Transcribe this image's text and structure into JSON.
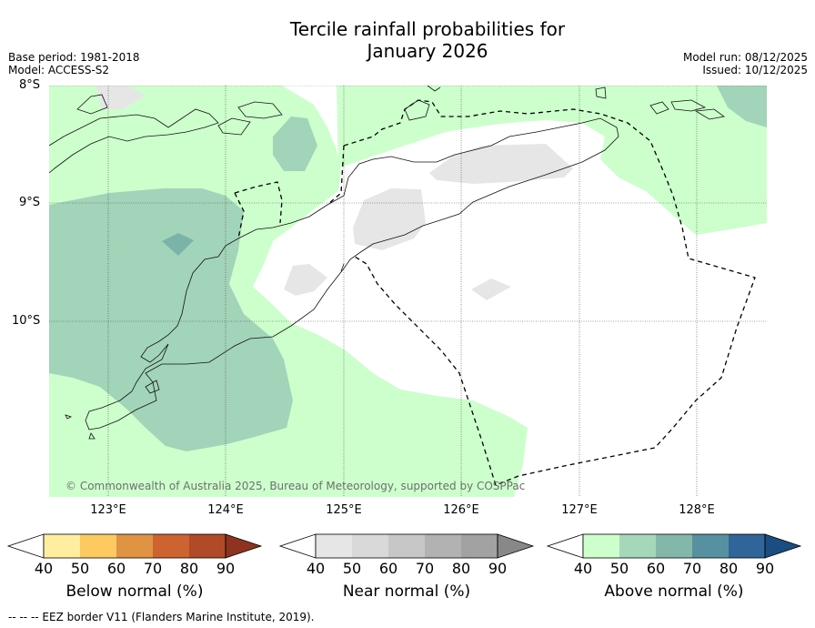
{
  "title": {
    "line1": "Tercile rainfall probabilities for",
    "line2": "January 2026"
  },
  "meta": {
    "base_period": "Base period: 1981-2018",
    "model": "Model: ACCESS-S2",
    "model_run": "Model run: 08/12/2025",
    "issued": "Issued: 10/12/2025"
  },
  "map": {
    "latitude_labels": [
      "8°S",
      "9°S",
      "10°S"
    ],
    "longitude_labels": [
      "123°E",
      "124°E",
      "125°E",
      "126°E",
      "127°E",
      "128°E"
    ],
    "copyright": "© Commonwealth of Australia 2025, Bureau of Meteorology, supported by COSPPac"
  },
  "colors": {
    "above_40": "#ccffcc",
    "above_50": "#a1d4b8",
    "above_60": "#7ab3a8",
    "near_40": "#e6e6e6",
    "ocean_white": "#ffffff"
  },
  "legends": [
    {
      "title": "Below normal (%)",
      "ticks": [
        "40",
        "50",
        "60",
        "70",
        "80",
        "90"
      ],
      "colors": [
        "#ffffff",
        "#ffeea0",
        "#fdca62",
        "#e09443",
        "#cc6331",
        "#b04a27",
        "#8e3320"
      ]
    },
    {
      "title": "Near normal (%)",
      "ticks": [
        "40",
        "50",
        "60",
        "70",
        "80",
        "90"
      ],
      "colors": [
        "#ffffff",
        "#e6e6e6",
        "#d9d9d9",
        "#c7c7c7",
        "#b2b2b2",
        "#a2a2a2",
        "#888888"
      ]
    },
    {
      "title": "Above normal (%)",
      "ticks": [
        "40",
        "50",
        "60",
        "70",
        "80",
        "90"
      ],
      "colors": [
        "#ffffff",
        "#ccffcc",
        "#a5d8b8",
        "#82b7a9",
        "#5790a0",
        "#2f6599",
        "#1c4d82"
      ]
    }
  ],
  "footnote": "--  --  -- EEZ border V11 (Flanders Marine Institute, 2019)."
}
